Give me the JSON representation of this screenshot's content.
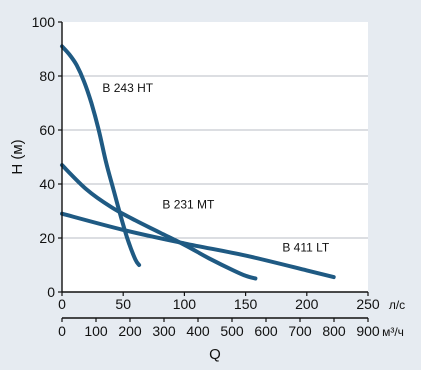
{
  "chart_data": {
    "type": "line",
    "title": "",
    "ylabel": "H (м)",
    "xlabel": "Q",
    "ylim": [
      0,
      100
    ],
    "xlim": [
      0,
      250
    ],
    "secondary_xlim": [
      0,
      900
    ],
    "y_ticks": [
      "0",
      "20",
      "40",
      "60",
      "80",
      "100"
    ],
    "x_ticks_primary": [
      "0",
      "50",
      "100",
      "150",
      "200",
      "250"
    ],
    "x_ticks_primary_unit": "л/с",
    "x_ticks_secondary": [
      "0",
      "100",
      "200",
      "300",
      "400",
      "500",
      "600",
      "700",
      "800",
      "900"
    ],
    "x_ticks_secondary_unit": "м³/ч",
    "grid": true,
    "series": [
      {
        "name": "B 243 HT",
        "x": [
          0,
          6,
          12,
          18,
          24,
          30,
          36,
          42,
          48,
          54,
          60,
          63
        ],
        "y": [
          91,
          88,
          84,
          78,
          70,
          60,
          48,
          38,
          28,
          19,
          12,
          10
        ]
      },
      {
        "name": "B 231 MT",
        "x": [
          0,
          20,
          40,
          60,
          80,
          100,
          120,
          140,
          150,
          158
        ],
        "y": [
          47,
          38,
          31.5,
          26.5,
          22,
          17.5,
          12.5,
          8,
          6,
          5
        ]
      },
      {
        "name": "B 411 LT",
        "x": [
          0,
          50,
          100,
          150,
          200,
          222
        ],
        "y": [
          29,
          23,
          18,
          13.5,
          8,
          5.5
        ]
      }
    ],
    "colors": {
      "line": "#1f5a83",
      "plot_bg": "#ffffff",
      "page_bg": "#e6ebf1",
      "grid": "#b9bec4",
      "axis": "#111111"
    }
  }
}
